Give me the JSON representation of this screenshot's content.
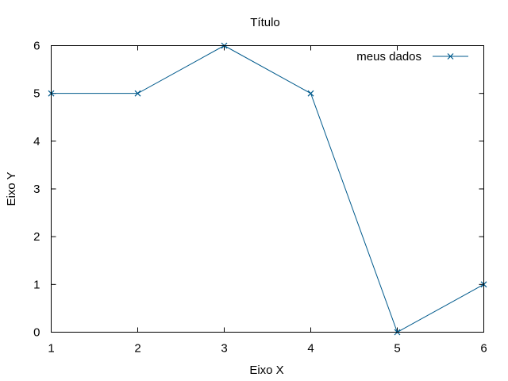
{
  "chart_data": {
    "type": "line",
    "title": "Título",
    "xlabel": "Eixo X",
    "ylabel": "Eixo Y",
    "xlim": [
      1,
      6
    ],
    "ylim": [
      0,
      6
    ],
    "xticks": [
      1,
      2,
      3,
      4,
      5,
      6
    ],
    "yticks": [
      0,
      1,
      2,
      3,
      4,
      5,
      6
    ],
    "grid": false,
    "legend_position": "top-right",
    "marker": "x",
    "series": [
      {
        "name": "meus dados",
        "color": "#005a8c",
        "x": [
          1,
          2,
          3,
          4,
          5,
          6
        ],
        "y": [
          5,
          5,
          6,
          5,
          0,
          1
        ]
      }
    ]
  }
}
